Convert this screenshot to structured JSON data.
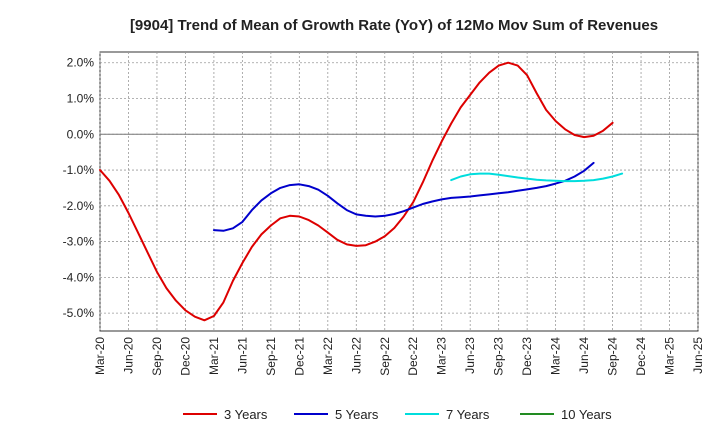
{
  "chart_data": {
    "type": "line",
    "title": "[9904]  Trend of Mean of Growth Rate (YoY) of 12Mo Mov Sum of Revenues",
    "xlabel": "",
    "ylabel": "",
    "y_unit_suffix": "%",
    "ylim": [
      -5.5,
      2.3
    ],
    "y_ticks": [
      2.0,
      1.0,
      0.0,
      -1.0,
      -2.0,
      -3.0,
      -4.0,
      -5.0
    ],
    "y_tick_labels": [
      "2.0%",
      "1.0%",
      "0.0%",
      "-1.0%",
      "-2.0%",
      "-3.0%",
      "-4.0%",
      "-5.0%"
    ],
    "x_ticks": [
      "Mar-20",
      "Jun-20",
      "Sep-20",
      "Dec-20",
      "Mar-21",
      "Jun-21",
      "Sep-21",
      "Dec-21",
      "Mar-22",
      "Jun-22",
      "Sep-22",
      "Dec-22",
      "Mar-23",
      "Jun-23",
      "Sep-23",
      "Dec-23",
      "Mar-24",
      "Jun-24",
      "Sep-24",
      "Dec-24",
      "Mar-25",
      "Jun-25"
    ],
    "grid": true,
    "legend_position": "bottom",
    "series": [
      {
        "name": "3 Years",
        "color": "#dd0000",
        "start_index": 0,
        "values": [
          -1.0,
          -1.3,
          -1.7,
          -2.2,
          -2.75,
          -3.3,
          -3.85,
          -4.3,
          -4.65,
          -4.92,
          -5.1,
          -5.2,
          -5.08,
          -4.7,
          -4.1,
          -3.6,
          -3.15,
          -2.8,
          -2.55,
          -2.35,
          -2.28,
          -2.3,
          -2.4,
          -2.55,
          -2.75,
          -2.95,
          -3.08,
          -3.12,
          -3.1,
          -3.0,
          -2.85,
          -2.62,
          -2.3,
          -1.9,
          -1.35,
          -0.75,
          -0.2,
          0.3,
          0.75,
          1.1,
          1.45,
          1.72,
          1.92,
          2.0,
          1.92,
          1.65,
          1.15,
          0.68,
          0.37,
          0.14,
          -0.02,
          -0.08,
          -0.04,
          0.1,
          0.32
        ]
      },
      {
        "name": "5 Years",
        "color": "#0000cc",
        "start_index": 12,
        "values": [
          -2.68,
          -2.7,
          -2.63,
          -2.45,
          -2.12,
          -1.85,
          -1.65,
          -1.5,
          -1.42,
          -1.4,
          -1.45,
          -1.55,
          -1.72,
          -1.93,
          -2.12,
          -2.24,
          -2.28,
          -2.3,
          -2.28,
          -2.23,
          -2.15,
          -2.05,
          -1.95,
          -1.88,
          -1.82,
          -1.78,
          -1.76,
          -1.74,
          -1.71,
          -1.68,
          -1.65,
          -1.62,
          -1.58,
          -1.54,
          -1.5,
          -1.45,
          -1.38,
          -1.3,
          -1.18,
          -1.02,
          -0.8
        ]
      },
      {
        "name": "7 Years",
        "color": "#00dddd",
        "start_index": 37,
        "values": [
          -1.28,
          -1.18,
          -1.12,
          -1.1,
          -1.1,
          -1.13,
          -1.17,
          -1.21,
          -1.24,
          -1.27,
          -1.29,
          -1.3,
          -1.31,
          -1.31,
          -1.3,
          -1.28,
          -1.24,
          -1.18,
          -1.1
        ]
      },
      {
        "name": "10 Years",
        "color": "#228b22",
        "start_index": 0,
        "values": []
      }
    ]
  }
}
